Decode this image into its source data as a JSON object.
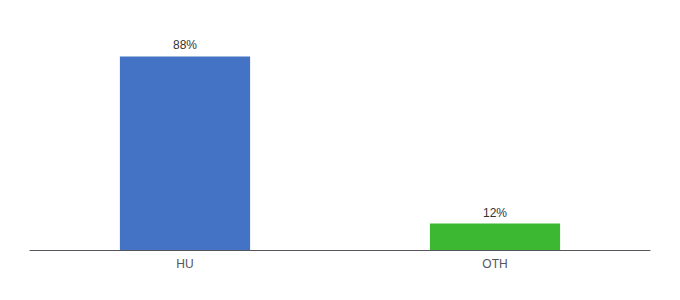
{
  "chart_data": {
    "type": "bar",
    "categories": [
      "HU",
      "OTH"
    ],
    "values": [
      88,
      12
    ],
    "value_labels": [
      "88%",
      "12%"
    ],
    "colors": [
      "#4472c4",
      "#3cb832"
    ],
    "ylim": [
      0,
      100
    ],
    "grid": false,
    "data_labels": true,
    "tick_labels": "x"
  }
}
